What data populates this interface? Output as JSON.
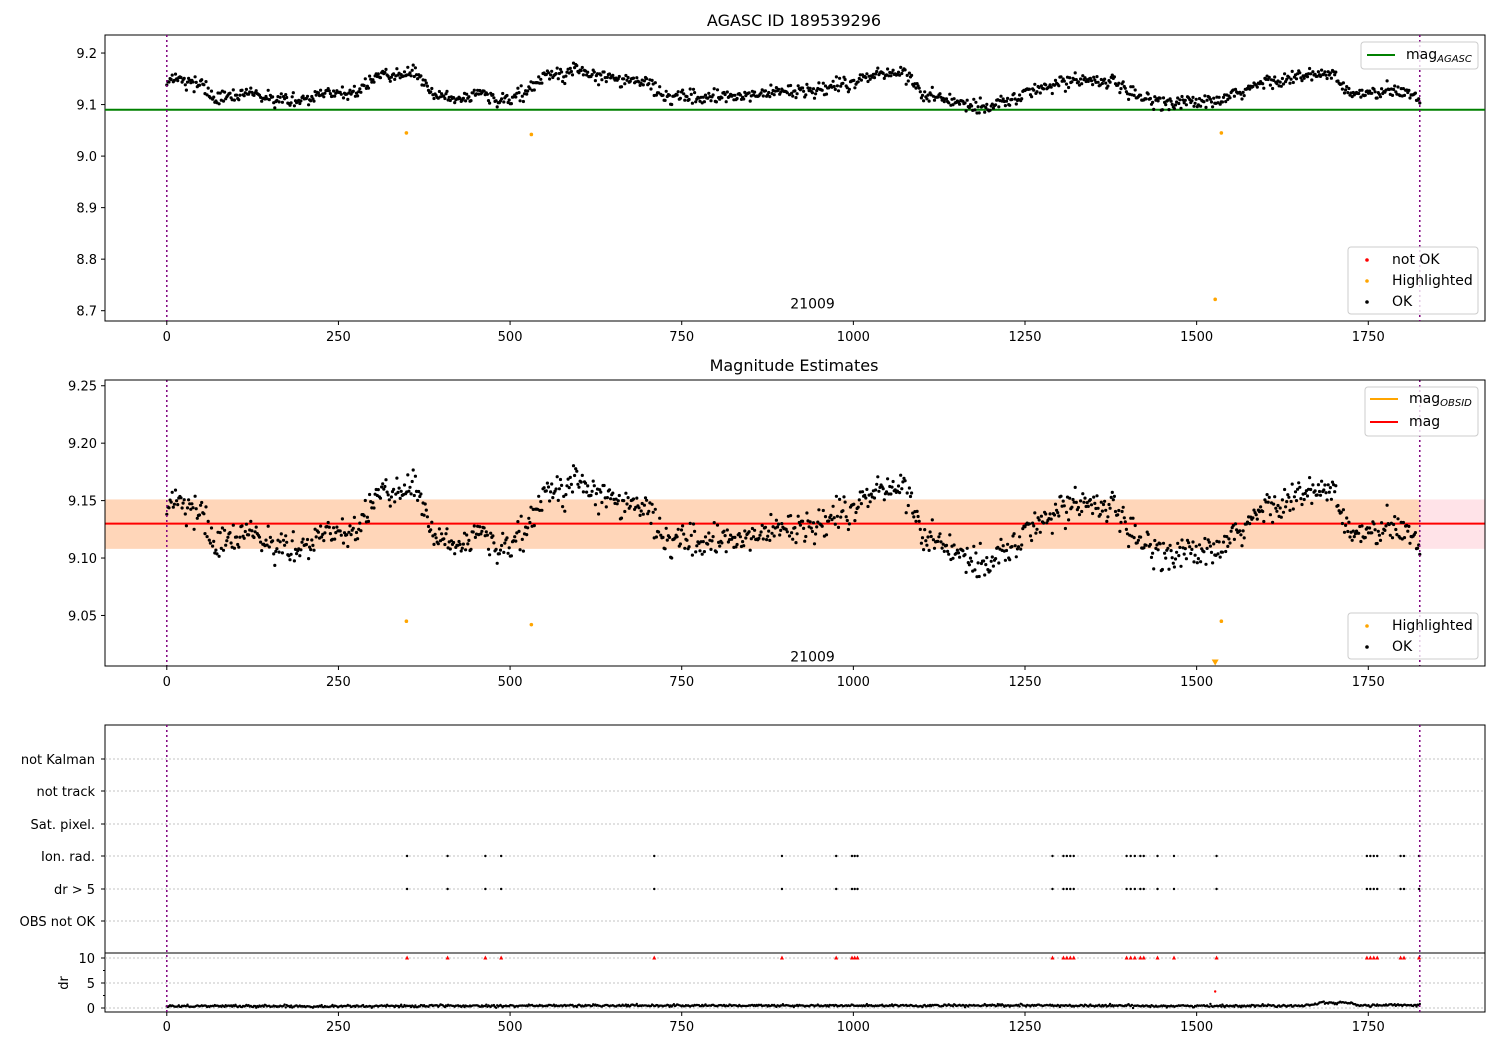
{
  "chart_data": [
    {
      "type": "scatter",
      "title": "AGASC ID 189539296",
      "xlim": [
        -90,
        1920
      ],
      "ylim": [
        8.68,
        9.235
      ],
      "xticks": [
        "0",
        "250",
        "500",
        "750",
        "1000",
        "1250",
        "1500",
        "1750",
        "2000"
      ],
      "xtick_values": [
        0,
        250,
        500,
        750,
        1000,
        1250,
        1500,
        1750,
        2000
      ],
      "yticks": [
        "8.7",
        "8.8",
        "8.9",
        "9.0",
        "9.1",
        "9.2"
      ],
      "ytick_values": [
        8.7,
        8.8,
        8.9,
        9.0,
        9.1,
        9.2
      ],
      "obsid_label": "21009",
      "obsid_position": [
        910,
        8.7
      ],
      "vlines": [
        0,
        1825
      ],
      "hlines": [
        {
          "y": 9.09,
          "x": [
            -90,
            1920
          ],
          "color": "#008000",
          "name": "mag_AGASC"
        }
      ],
      "legend_top": [
        {
          "type": "line",
          "label": "mag",
          "sub": "AGASC",
          "color": "#008000"
        }
      ],
      "legend_bottom": [
        {
          "type": "marker",
          "label": "not OK",
          "color": "#ff0000"
        },
        {
          "type": "marker",
          "label": "Highlighted",
          "color": "#ffa500"
        },
        {
          "type": "marker",
          "label": "OK",
          "color": "#000000"
        }
      ],
      "highlighted": [
        [
          349,
          9.045
        ],
        [
          531,
          9.042
        ],
        [
          1527,
          8.722
        ],
        [
          1536,
          9.045
        ]
      ],
      "series_ok": {
        "name": "OK",
        "x_range": [
          0,
          1825
        ],
        "n": 1150,
        "trend": [
          [
            0,
            9.145
          ],
          [
            25,
            9.15
          ],
          [
            50,
            9.14
          ],
          [
            70,
            9.11
          ],
          [
            120,
            9.12
          ],
          [
            180,
            9.105
          ],
          [
            220,
            9.12
          ],
          [
            280,
            9.125
          ],
          [
            310,
            9.16
          ],
          [
            345,
            9.155
          ],
          [
            360,
            9.165
          ],
          [
            390,
            9.115
          ],
          [
            430,
            9.11
          ],
          [
            460,
            9.13
          ],
          [
            480,
            9.105
          ],
          [
            520,
            9.12
          ],
          [
            550,
            9.155
          ],
          [
            600,
            9.165
          ],
          [
            650,
            9.15
          ],
          [
            700,
            9.14
          ],
          [
            730,
            9.115
          ],
          [
            800,
            9.115
          ],
          [
            850,
            9.12
          ],
          [
            900,
            9.125
          ],
          [
            960,
            9.13
          ],
          [
            1000,
            9.145
          ],
          [
            1040,
            9.16
          ],
          [
            1080,
            9.16
          ],
          [
            1100,
            9.12
          ],
          [
            1150,
            9.105
          ],
          [
            1190,
            9.095
          ],
          [
            1230,
            9.11
          ],
          [
            1270,
            9.13
          ],
          [
            1320,
            9.15
          ],
          [
            1380,
            9.145
          ],
          [
            1400,
            9.12
          ],
          [
            1450,
            9.105
          ],
          [
            1500,
            9.105
          ],
          [
            1530,
            9.105
          ],
          [
            1560,
            9.12
          ],
          [
            1600,
            9.145
          ],
          [
            1660,
            9.155
          ],
          [
            1700,
            9.16
          ],
          [
            1720,
            9.12
          ],
          [
            1800,
            9.125
          ],
          [
            1825,
            9.115
          ]
        ],
        "noise": 0.009
      }
    },
    {
      "type": "scatter",
      "title": "Magnitude Estimates",
      "xlim": [
        -90,
        1920
      ],
      "ylim": [
        9.006,
        9.255
      ],
      "xticks": [
        "0",
        "250",
        "500",
        "750",
        "1000",
        "1250",
        "1500",
        "1750",
        "2000"
      ],
      "xtick_values": [
        0,
        250,
        500,
        750,
        1000,
        1250,
        1500,
        1750,
        2000
      ],
      "yticks": [
        "9.05",
        "9.10",
        "9.15",
        "9.20",
        "9.25"
      ],
      "ytick_values": [
        9.05,
        9.1,
        9.15,
        9.2,
        9.25
      ],
      "obsid_label": "21009",
      "obsid_position": [
        910,
        9.008
      ],
      "vlines": [
        0,
        1825
      ],
      "band_outer": {
        "y": [
          9.108,
          9.151
        ],
        "x": [
          -90,
          1920
        ],
        "color": "#ffc0cb"
      },
      "band_inner": {
        "y": [
          9.108,
          9.151
        ],
        "x": [
          -90,
          1825
        ],
        "color": "#ffa500"
      },
      "hlines": [
        {
          "y": 9.13,
          "x": [
            -90,
            1920
          ],
          "color": "#ff0000",
          "name": "mag"
        }
      ],
      "legend_top": [
        {
          "type": "line",
          "label": "mag",
          "sub": "OBSID",
          "color": "#ffa500"
        },
        {
          "type": "line",
          "label": "mag",
          "sub": "",
          "color": "#ff0000"
        }
      ],
      "legend_bottom": [
        {
          "type": "marker",
          "label": "Highlighted",
          "color": "#ffa500"
        },
        {
          "type": "marker",
          "label": "OK",
          "color": "#000000"
        }
      ],
      "highlighted": [
        [
          349,
          9.045
        ],
        [
          531,
          9.042
        ],
        [
          1536,
          9.045
        ]
      ],
      "offscale_marker": {
        "x": 1527,
        "y": 9.009,
        "color": "#ffa500"
      }
    },
    {
      "type": "scatter",
      "title": "",
      "xlim": [
        -90,
        1920
      ],
      "xticks": [
        "0",
        "250",
        "500",
        "750",
        "1000",
        "1250",
        "1500",
        "1750",
        "2000"
      ],
      "xtick_values": [
        0,
        250,
        500,
        750,
        1000,
        1250,
        1500,
        1750,
        2000
      ],
      "flag_labels": [
        "not Kalman",
        "not track",
        "Sat. pixel.",
        "Ion. rad.",
        "dr > 5",
        "OBS not OK"
      ],
      "vlines": [
        0,
        1825
      ],
      "flag_events_x": [
        350,
        409,
        464,
        487,
        710,
        896,
        975,
        998,
        1002,
        1006,
        1290,
        1306,
        1311,
        1316,
        1321,
        1398,
        1404,
        1410,
        1418,
        1423,
        1443,
        1467,
        1529,
        1748,
        1753,
        1758,
        1763,
        1797,
        1802,
        1824
      ],
      "flag_rows_with_events": [
        "Ion. rad.",
        "dr > 5"
      ],
      "dr_panel": {
        "ylabel": "dr",
        "yticks": [
          "0",
          "5",
          "10"
        ],
        "ytick_values": [
          0,
          5,
          10
        ],
        "ylim": [
          -0.8,
          11
        ],
        "clip_value": 10,
        "outlier": [
          1527,
          3.3
        ],
        "baseline_trend": [
          [
            0,
            0.4
          ],
          [
            250,
            0.35
          ],
          [
            500,
            0.45
          ],
          [
            750,
            0.5
          ],
          [
            1000,
            0.45
          ],
          [
            1250,
            0.5
          ],
          [
            1500,
            0.4
          ],
          [
            1660,
            0.5
          ],
          [
            1680,
            1.1
          ],
          [
            1720,
            1.0
          ],
          [
            1740,
            0.5
          ],
          [
            1825,
            0.6
          ]
        ]
      }
    }
  ]
}
